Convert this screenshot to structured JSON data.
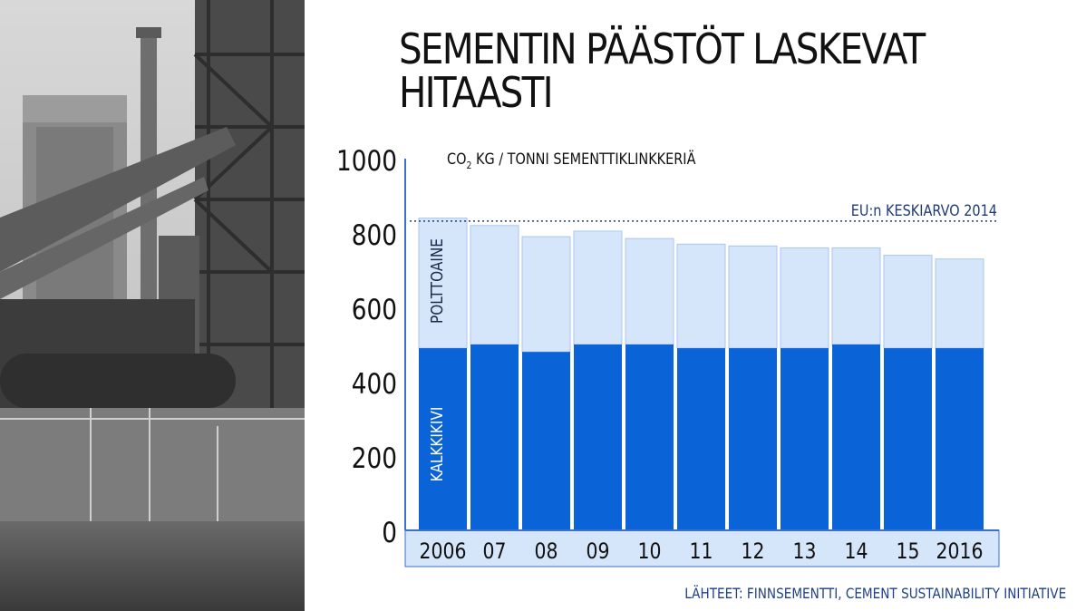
{
  "title": "SEMENTIN PÄÄSTÖT LASKEVAT HITAASTI",
  "source": "LÄHTEET: FINNSEMENTTI, CEMENT SUSTAINABILITY INITIATIVE",
  "colors": {
    "fuel": "#d6e6fa",
    "limestone": "#0b63d8",
    "axis": "#3b6fd0",
    "reference": "#1f3c78",
    "text": "#111111"
  },
  "chart_data": {
    "type": "bar",
    "stacked": true,
    "categories": [
      "2006",
      "07",
      "08",
      "09",
      "10",
      "11",
      "12",
      "13",
      "14",
      "15",
      "2016"
    ],
    "series": [
      {
        "name": "KALKKIKIVI",
        "values": [
          490,
          500,
          480,
          500,
          500,
          490,
          490,
          490,
          500,
          490,
          490
        ]
      },
      {
        "name": "POLTTOAINE",
        "values": [
          350,
          320,
          310,
          305,
          285,
          280,
          275,
          270,
          260,
          250,
          240
        ]
      }
    ],
    "unit_base": "CO",
    "unit_sub": "2",
    "unit_rest": " KG / TONNI SEMENTTIKLINKKERIÄ",
    "yticks": [
      0,
      200,
      400,
      600,
      800,
      1000
    ],
    "ylim": [
      0,
      1000
    ],
    "reference_line": {
      "value": 832,
      "label": "EU:n KESKIARVO 2014"
    },
    "grid": false
  }
}
